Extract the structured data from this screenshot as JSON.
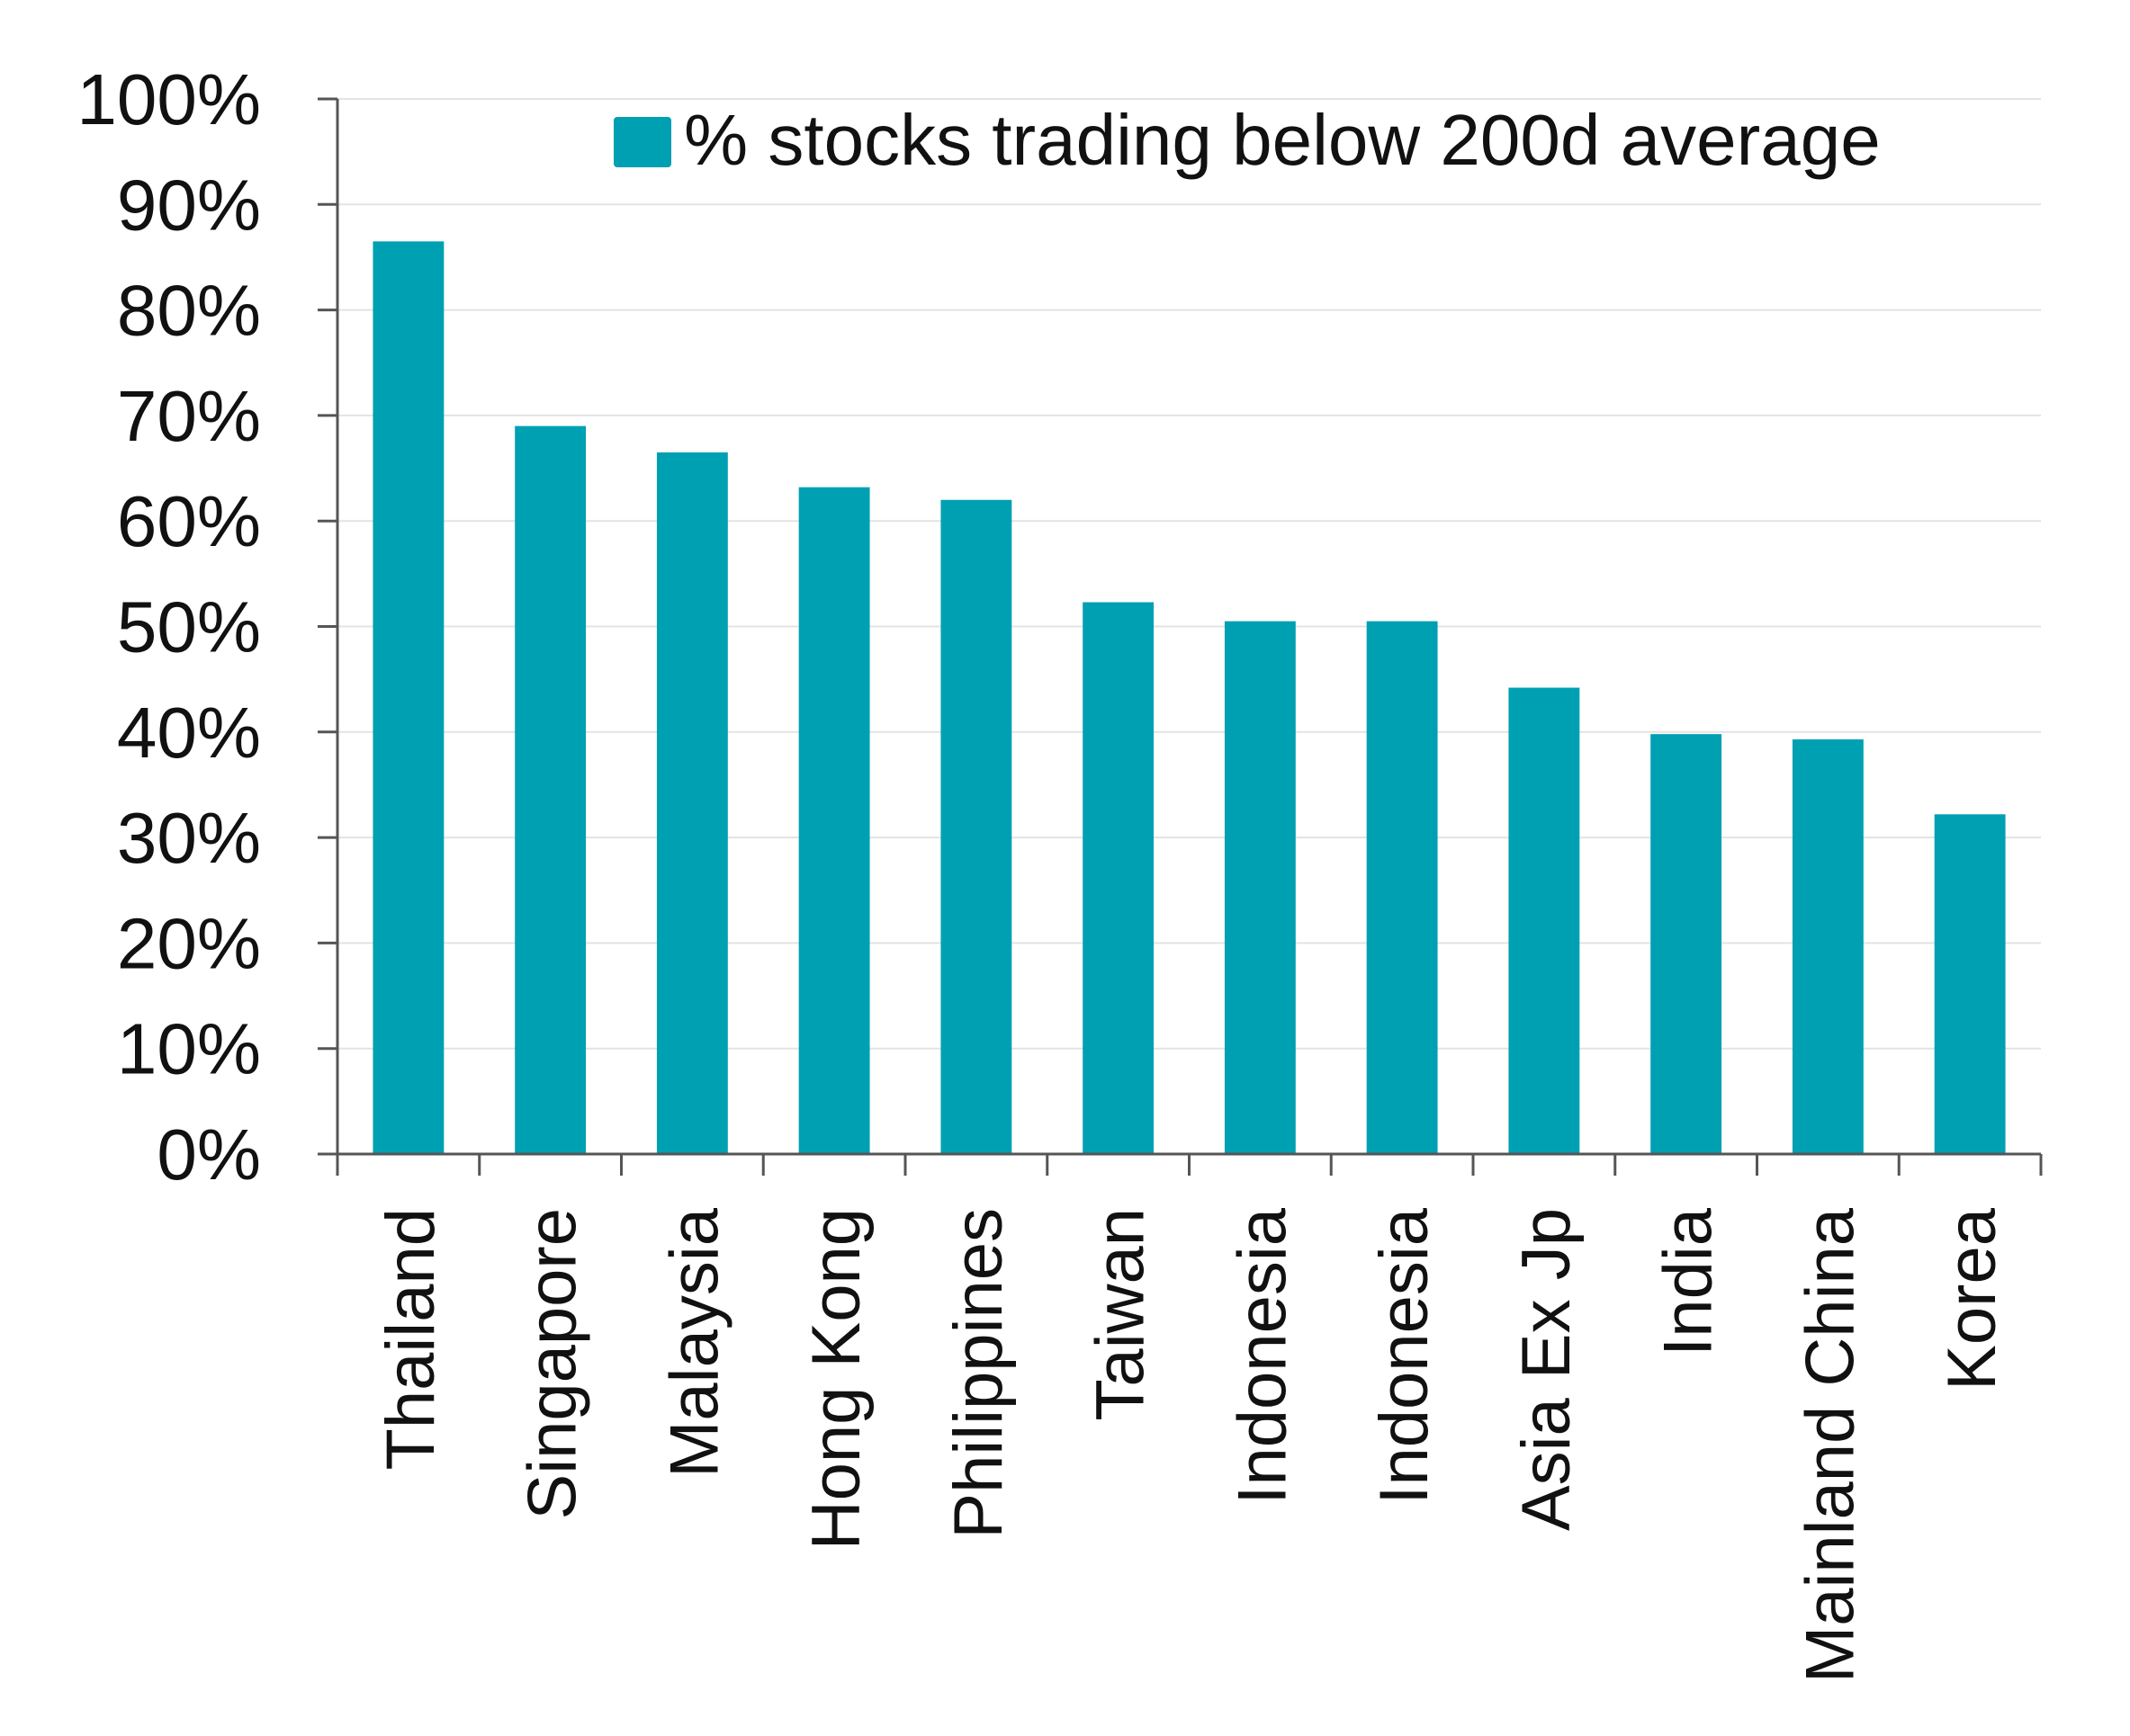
{
  "chart_data": {
    "type": "bar",
    "categories": [
      "Thailand",
      "Singapore",
      "Malaysia",
      "Hong Kong",
      "Philippines",
      "Taiwan",
      "Indonesia",
      "Indonesia",
      "Asia Ex Jp",
      "India",
      "Mainland China",
      "Korea"
    ],
    "series": [
      {
        "name": "% stocks trading below 200d average",
        "values": [
          86.5,
          69,
          66.5,
          63.2,
          62,
          52.3,
          50.5,
          50.5,
          44.2,
          39.8,
          39.3,
          32.2
        ]
      }
    ],
    "y_ticks": [
      "0%",
      "10%",
      "20%",
      "30%",
      "40%",
      "50%",
      "60%",
      "70%",
      "80%",
      "90%",
      "100%"
    ],
    "ylim": [
      0,
      100
    ],
    "grid": true,
    "legend_position": "top",
    "bar_color": "#00A0B3",
    "grid_color": "#E3E3E3",
    "axis_color": "#555555"
  }
}
